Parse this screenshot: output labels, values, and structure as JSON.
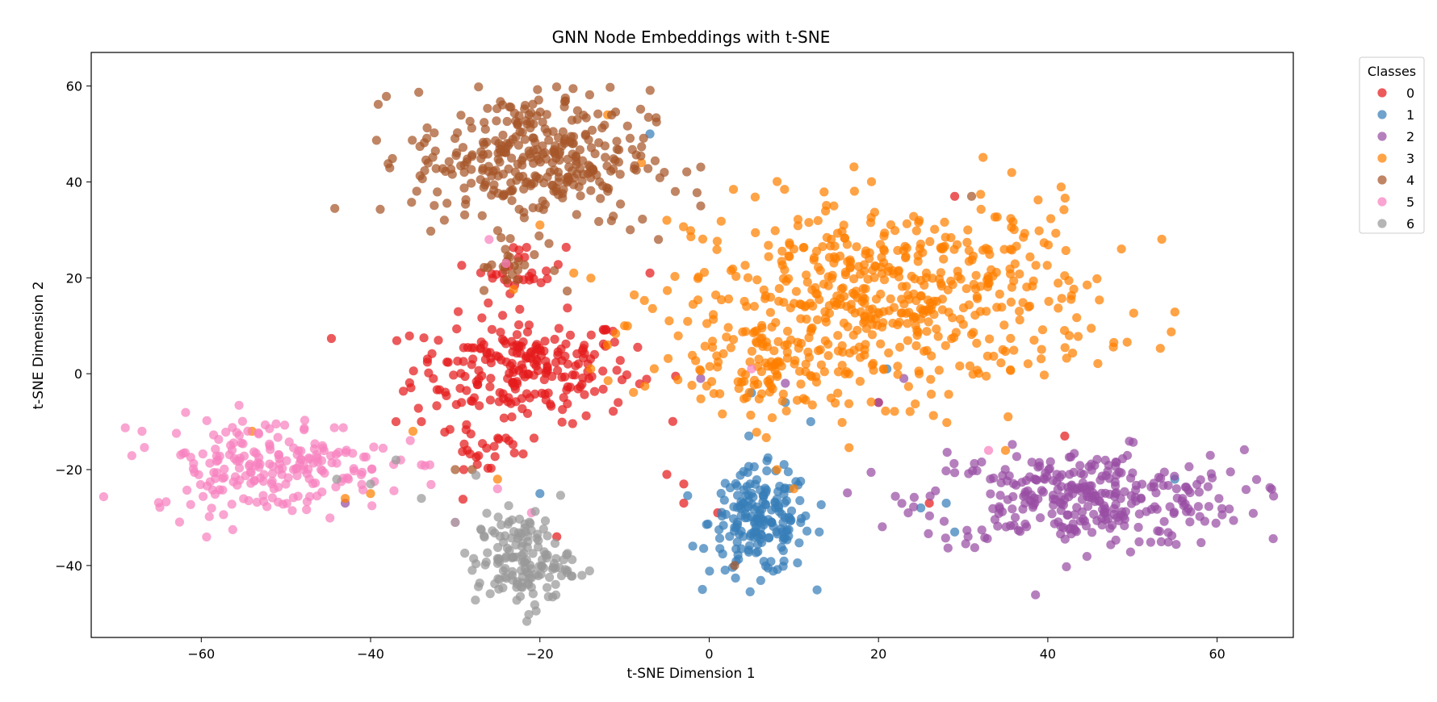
{
  "chart_data": {
    "type": "scatter",
    "title": "GNN Node Embeddings with t-SNE",
    "xlabel": "t-SNE Dimension 1",
    "ylabel": "t-SNE Dimension 2",
    "xlim": [
      -73,
      69
    ],
    "ylim": [
      -55,
      67
    ],
    "xticks": [
      -60,
      -40,
      -20,
      0,
      20,
      40,
      60
    ],
    "yticks": [
      -40,
      -20,
      0,
      20,
      40,
      60
    ],
    "xtick_labels": [
      "−60",
      "−40",
      "−20",
      "0",
      "20",
      "40",
      "60"
    ],
    "ytick_labels": [
      "−40",
      "−20",
      "0",
      "20",
      "40",
      "60"
    ],
    "grid": false,
    "legend": {
      "title": "Classes",
      "placement": "outside-top-right",
      "entries": [
        "0",
        "1",
        "2",
        "3",
        "4",
        "5",
        "6"
      ]
    },
    "series": [
      {
        "name": "0",
        "color": "#e41a1c",
        "clusters": [
          {
            "cx": -22,
            "cy": 1,
            "sx": 6.5,
            "sy": 5.5,
            "n": 230
          },
          {
            "cx": -22,
            "cy": 22,
            "sx": 2.5,
            "sy": 2.5,
            "n": 28
          },
          {
            "cx": -26,
            "cy": -16,
            "sx": 3,
            "sy": 3,
            "n": 25
          }
        ],
        "points": [
          [
            -37,
            -10
          ],
          [
            -18,
            -34
          ],
          [
            -7,
            21
          ],
          [
            -5,
            -21
          ],
          [
            -3,
            -23
          ],
          [
            -3,
            -27
          ],
          [
            29,
            37
          ],
          [
            26,
            -27
          ],
          [
            42,
            -13
          ],
          [
            20,
            -6
          ],
          [
            1,
            -29
          ],
          [
            -29,
            -20
          ],
          [
            -34,
            -10
          ]
        ]
      },
      {
        "name": "1",
        "color": "#377eb8",
        "clusters": [
          {
            "cx": 6,
            "cy": -31,
            "sx": 3,
            "sy": 5.5,
            "n": 190
          }
        ],
        "points": [
          [
            -7,
            50
          ],
          [
            21,
            1
          ],
          [
            5,
            -4
          ],
          [
            9,
            -6
          ],
          [
            12,
            -10
          ],
          [
            -20,
            -25
          ],
          [
            25,
            -28
          ],
          [
            29,
            -33
          ],
          [
            55,
            -22
          ],
          [
            13,
            -33
          ],
          [
            28,
            -27
          ]
        ]
      },
      {
        "name": "2",
        "color": "#984ea3",
        "clusters": [
          {
            "cx": 44,
            "cy": -26,
            "sx": 9.5,
            "sy": 5,
            "n": 320
          }
        ],
        "points": [
          [
            9,
            -2
          ],
          [
            20,
            -6
          ],
          [
            23,
            -1
          ],
          [
            -1,
            -1
          ],
          [
            -43,
            -27
          ]
        ]
      },
      {
        "name": "3",
        "color": "#ff7f00",
        "clusters": [
          {
            "cx": 22,
            "cy": 16,
            "sx": 12,
            "sy": 10,
            "n": 520
          },
          {
            "cx": 7,
            "cy": 2,
            "sx": 6,
            "sy": 5,
            "n": 120
          }
        ],
        "points": [
          [
            -12,
            54
          ],
          [
            -20,
            31
          ],
          [
            -16,
            21
          ],
          [
            -10,
            10
          ],
          [
            -12,
            6
          ],
          [
            -14,
            1
          ],
          [
            -54,
            -12
          ],
          [
            -40,
            -25
          ],
          [
            -35,
            -12
          ],
          [
            -43,
            -26
          ],
          [
            8,
            -20
          ],
          [
            10,
            -24
          ],
          [
            -25,
            -22
          ],
          [
            -8,
            44
          ],
          [
            -5,
            32
          ],
          [
            35,
            -16
          ]
        ]
      },
      {
        "name": "4",
        "color": "#a65628",
        "clusters": [
          {
            "cx": -21,
            "cy": 45,
            "sx": 7,
            "sy": 7,
            "n": 340
          },
          {
            "cx": -23,
            "cy": 22,
            "sx": 2.2,
            "sy": 2.2,
            "n": 20
          }
        ],
        "points": [
          [
            -4,
            38
          ],
          [
            -1,
            35
          ],
          [
            -6,
            28
          ],
          [
            -28,
            -20
          ],
          [
            -30,
            -20
          ],
          [
            31,
            37
          ],
          [
            3,
            -40
          ]
        ]
      },
      {
        "name": "5",
        "color": "#f781bf",
        "clusters": [
          {
            "cx": -52,
            "cy": -19,
            "sx": 7,
            "sy": 5,
            "n": 210
          }
        ],
        "points": [
          [
            -67,
            -12
          ],
          [
            -26,
            28
          ],
          [
            -24,
            23
          ],
          [
            -30,
            -31
          ],
          [
            -25,
            -24
          ],
          [
            -21,
            -29
          ],
          [
            5,
            1
          ],
          [
            33,
            -16
          ],
          [
            -34,
            -19
          ],
          [
            -33,
            -19
          ]
        ]
      },
      {
        "name": "6",
        "color": "#999999",
        "clusters": [
          {
            "cx": -22,
            "cy": -39,
            "sx": 2.8,
            "sy": 5,
            "n": 150
          }
        ],
        "points": [
          [
            -37,
            -18
          ],
          [
            -34,
            -26
          ],
          [
            -40,
            -23
          ],
          [
            -28,
            -41
          ],
          [
            -30,
            -31
          ],
          [
            -44,
            -22
          ]
        ]
      }
    ]
  }
}
